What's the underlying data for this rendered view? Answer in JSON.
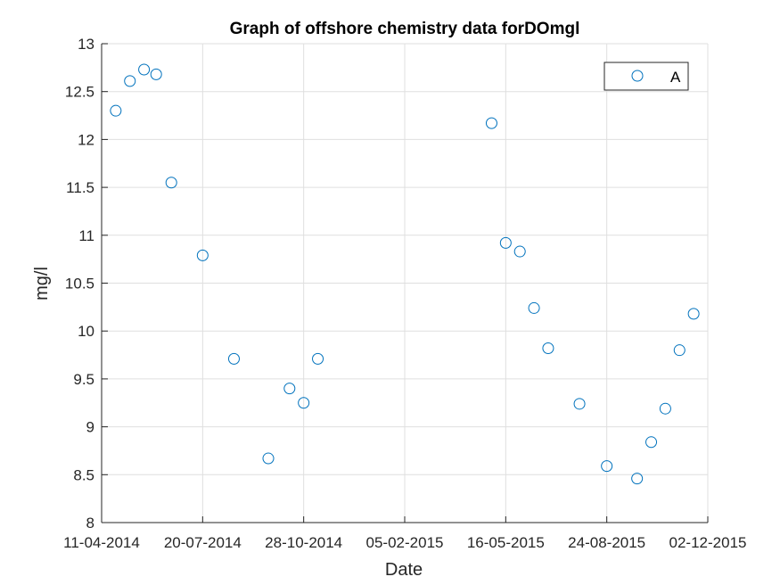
{
  "chart_data": {
    "type": "scatter",
    "title": "Graph of offshore chemistry data forDOmgl",
    "xlabel": "Date",
    "ylabel": "mg/l",
    "x_tick_labels": [
      "11-04-2014",
      "20-07-2014",
      "28-10-2014",
      "05-02-2015",
      "16-05-2015",
      "24-08-2015",
      "02-12-2015"
    ],
    "x_ticks": [
      "2014-04-11",
      "2014-07-20",
      "2014-10-28",
      "2015-02-05",
      "2015-05-16",
      "2015-08-24",
      "2015-12-02"
    ],
    "xlim": [
      "2014-04-11",
      "2015-12-02"
    ],
    "ylim": [
      8,
      13
    ],
    "y_ticks": [
      8,
      8.5,
      9,
      9.5,
      10,
      10.5,
      11,
      11.5,
      12,
      12.5,
      13
    ],
    "grid": true,
    "legend_position": "top-right",
    "marker_color": "#0072BD",
    "series": [
      {
        "name": "A",
        "x": [
          "2014-04-25",
          "2014-05-09",
          "2014-05-23",
          "2014-06-04",
          "2014-06-19",
          "2014-07-20",
          "2014-08-20",
          "2014-09-23",
          "2014-10-14",
          "2014-10-28",
          "2014-11-11",
          "2015-05-02",
          "2015-05-16",
          "2015-05-30",
          "2015-06-13",
          "2015-06-27",
          "2015-07-28",
          "2015-08-24",
          "2015-09-23",
          "2015-10-07",
          "2015-10-21",
          "2015-11-04",
          "2015-11-18"
        ],
        "y": [
          12.3,
          12.61,
          12.73,
          12.68,
          11.55,
          10.79,
          9.71,
          8.67,
          9.4,
          9.25,
          9.71,
          12.17,
          10.92,
          10.83,
          10.24,
          9.82,
          9.24,
          8.59,
          8.46,
          8.84,
          9.19,
          9.8,
          10.18
        ]
      }
    ]
  }
}
